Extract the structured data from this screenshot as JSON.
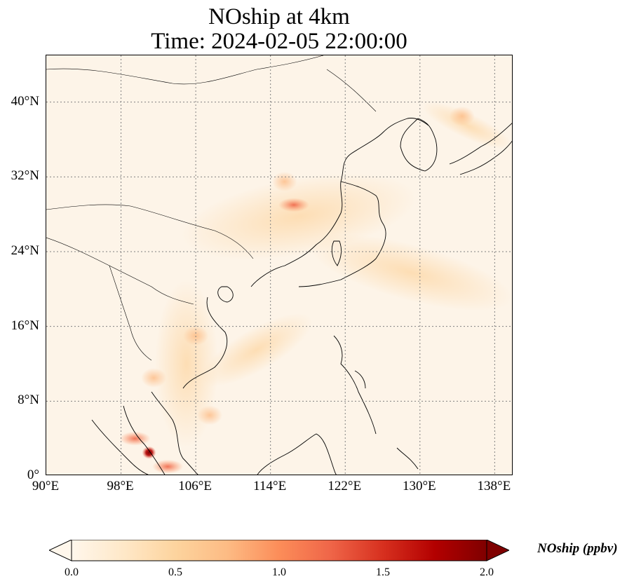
{
  "title": {
    "line1": "NOship at 4km",
    "line2": "Time: 2024-02-05 22:00:00"
  },
  "map": {
    "projection": "PlateCarree",
    "extent_lon": [
      90,
      140
    ],
    "extent_lat": [
      0,
      45
    ],
    "background_color": "#fdf4e8",
    "gridlines": "dotted",
    "coastline_color": "#000000",
    "colormap": "OrRd"
  },
  "axes": {
    "y_ticks": [
      {
        "lat": 0,
        "label": "0°"
      },
      {
        "lat": 8,
        "label": "8°N"
      },
      {
        "lat": 16,
        "label": "16°N"
      },
      {
        "lat": 24,
        "label": "24°N"
      },
      {
        "lat": 32,
        "label": "32°N"
      },
      {
        "lat": 40,
        "label": "40°N"
      }
    ],
    "x_ticks": [
      {
        "lon": 90,
        "label": "90°E"
      },
      {
        "lon": 98,
        "label": "98°E"
      },
      {
        "lon": 106,
        "label": "106°E"
      },
      {
        "lon": 114,
        "label": "114°E"
      },
      {
        "lon": 122,
        "label": "122°E"
      },
      {
        "lon": 130,
        "label": "130°E"
      },
      {
        "lon": 138,
        "label": "138°E"
      }
    ]
  },
  "colorbar": {
    "label": "NOship (ppbv)",
    "min": 0.0,
    "max": 2.0,
    "extend": "both",
    "ticks": [
      {
        "value": 0.0,
        "label": "0.0"
      },
      {
        "value": 0.5,
        "label": "0.5"
      },
      {
        "value": 1.0,
        "label": "1.0"
      },
      {
        "value": 1.5,
        "label": "1.5"
      },
      {
        "value": 2.0,
        "label": "2.0"
      }
    ],
    "color_stops": [
      "#fff7ec",
      "#fee8c8",
      "#fdd49e",
      "#fdbb84",
      "#fc8d59",
      "#ef6548",
      "#d7301f",
      "#b30000",
      "#7f0000"
    ]
  },
  "hotspots": [
    {
      "lon": 116.5,
      "lat": 29.0,
      "value": 0.9
    },
    {
      "lon": 115.5,
      "lat": 31.5,
      "value": 0.55
    },
    {
      "lon": 101.0,
      "lat": 2.5,
      "value": 2.0
    },
    {
      "lon": 99.5,
      "lat": 4.0,
      "value": 1.2
    },
    {
      "lon": 103.0,
      "lat": 1.0,
      "value": 0.9
    },
    {
      "lon": 106.0,
      "lat": 15.0,
      "value": 0.35
    },
    {
      "lon": 101.5,
      "lat": 10.5,
      "value": 0.35
    },
    {
      "lon": 107.5,
      "lat": 6.5,
      "value": 0.4
    },
    {
      "lon": 134.5,
      "lat": 38.5,
      "value": 0.3
    }
  ]
}
